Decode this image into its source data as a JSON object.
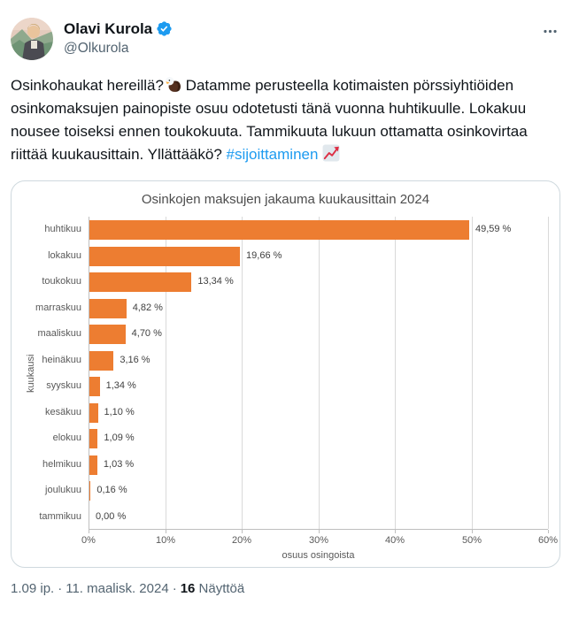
{
  "header": {
    "display_name": "Olavi Kurola",
    "handle": "@Olkurola",
    "verified": true
  },
  "tweet": {
    "text_before_eagle": "Osinkohaukat hereillä?",
    "text_main": " Datamme perusteella kotimaisten pörssiyhtiöiden osinkomaksujen painopiste osuu odotetusti tänä vuonna huhtikuulle. Lokakuu nousee toiseksi ennen toukokuuta. Tammikuuta lukuun ottamatta osinkovirtaa riittää kuukausittain. Yllättääkö? ",
    "hashtag": "#sijoittaminen"
  },
  "chart_data": {
    "type": "bar",
    "orientation": "horizontal",
    "title": "Osinkojen maksujen jakauma kuukausittain 2024",
    "categories": [
      "huhtikuu",
      "lokakuu",
      "toukokuu",
      "marraskuu",
      "maaliskuu",
      "heinäkuu",
      "syyskuu",
      "kesäkuu",
      "elokuu",
      "helmikuu",
      "joulukuu",
      "tammikuu"
    ],
    "values": [
      49.59,
      19.66,
      13.34,
      4.82,
      4.7,
      3.16,
      1.34,
      1.1,
      1.09,
      1.03,
      0.16,
      0.0
    ],
    "value_labels": [
      "49,59 %",
      "19,66 %",
      "13,34 %",
      "4,82 %",
      "4,70 %",
      "3,16 %",
      "1,34 %",
      "1,10 %",
      "1,09 %",
      "1,03 %",
      "0,16 %",
      "0,00 %"
    ],
    "xlabel": "osuus osingoista",
    "ylabel": "kuukausi",
    "xlim": [
      0,
      60
    ],
    "x_ticks": [
      "0%",
      "10%",
      "20%",
      "30%",
      "40%",
      "50%",
      "60%"
    ],
    "grid": true,
    "legend": false,
    "bar_color": "#ED7D31"
  },
  "footer": {
    "time": "1.09 ip.",
    "date": "11. maalisk. 2024",
    "views_count": "16",
    "views_label": "Näyttöä",
    "separator": "·"
  },
  "colors": {
    "accent_blue": "#1d9bf0",
    "bar_orange": "#ED7D31",
    "text_primary": "#0f1419",
    "text_secondary": "#536471",
    "card_border": "#cfd9de",
    "gridline": "#d9d9d9"
  }
}
